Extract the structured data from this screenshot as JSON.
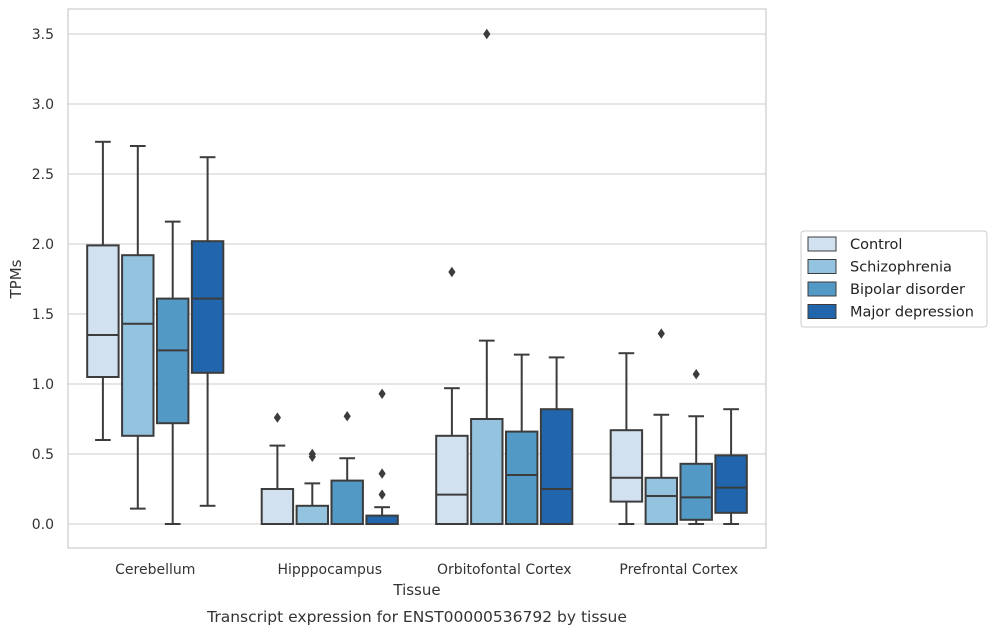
{
  "caption": "Transcript expression for ENST00000536792 by tissue",
  "chart_data": {
    "type": "box",
    "xlabel": "Tissue",
    "ylabel": "TPMs",
    "ylim": [
      -0.17,
      3.67
    ],
    "yticks": [
      "0.0",
      "0.5",
      "1.0",
      "1.5",
      "2.0",
      "2.5",
      "3.0",
      "3.5"
    ],
    "grid": true,
    "legend_position": "right",
    "categories": [
      "Cerebellum",
      "Hipppocampus",
      "Orbitofontal Cortex",
      "Prefrontal Cortex"
    ],
    "series": [
      {
        "name": "Control",
        "color": "#d1e1f0",
        "boxes": [
          {
            "whislo": 0.6,
            "q1": 1.05,
            "med": 1.35,
            "q3": 1.99,
            "whishi": 2.73,
            "fliers": []
          },
          {
            "whislo": 0.0,
            "q1": 0.0,
            "med": 0.0,
            "q3": 0.25,
            "whishi": 0.56,
            "fliers": [
              0.76
            ]
          },
          {
            "whislo": 0.0,
            "q1": 0.0,
            "med": 0.21,
            "q3": 0.63,
            "whishi": 0.97,
            "fliers": [
              1.8
            ]
          },
          {
            "whislo": 0.0,
            "q1": 0.16,
            "med": 0.33,
            "q3": 0.67,
            "whishi": 1.22,
            "fliers": []
          }
        ]
      },
      {
        "name": "Schizophrenia",
        "color": "#93c3df",
        "boxes": [
          {
            "whislo": 0.11,
            "q1": 0.63,
            "med": 1.43,
            "q3": 1.92,
            "whishi": 2.7,
            "fliers": []
          },
          {
            "whislo": 0.0,
            "q1": 0.0,
            "med": 0.0,
            "q3": 0.13,
            "whishi": 0.29,
            "fliers": [
              0.48,
              0.5
            ]
          },
          {
            "whislo": 0.0,
            "q1": 0.0,
            "med": 0.0,
            "q3": 0.75,
            "whishi": 1.31,
            "fliers": [
              3.5
            ]
          },
          {
            "whislo": 0.0,
            "q1": 0.0,
            "med": 0.2,
            "q3": 0.33,
            "whishi": 0.78,
            "fliers": [
              1.36
            ]
          }
        ]
      },
      {
        "name": "Bipolar disorder",
        "color": "#5399c6",
        "boxes": [
          {
            "whislo": 0.0,
            "q1": 0.72,
            "med": 1.24,
            "q3": 1.61,
            "whishi": 2.16,
            "fliers": []
          },
          {
            "whislo": 0.0,
            "q1": 0.0,
            "med": 0.0,
            "q3": 0.31,
            "whishi": 0.47,
            "fliers": [
              0.77
            ]
          },
          {
            "whislo": 0.0,
            "q1": 0.0,
            "med": 0.35,
            "q3": 0.66,
            "whishi": 1.21,
            "fliers": []
          },
          {
            "whislo": 0.0,
            "q1": 0.03,
            "med": 0.19,
            "q3": 0.43,
            "whishi": 0.77,
            "fliers": [
              1.07
            ]
          }
        ]
      },
      {
        "name": "Major depression",
        "color": "#2166ac",
        "boxes": [
          {
            "whislo": 0.13,
            "q1": 1.08,
            "med": 1.61,
            "q3": 2.02,
            "whishi": 2.62,
            "fliers": []
          },
          {
            "whislo": 0.0,
            "q1": 0.0,
            "med": 0.0,
            "q3": 0.06,
            "whishi": 0.12,
            "fliers": [
              0.21,
              0.36,
              0.93
            ]
          },
          {
            "whislo": 0.0,
            "q1": 0.0,
            "med": 0.25,
            "q3": 0.82,
            "whishi": 1.19,
            "fliers": []
          },
          {
            "whislo": 0.0,
            "q1": 0.08,
            "med": 0.26,
            "q3": 0.49,
            "whishi": 0.82,
            "fliers": []
          }
        ]
      }
    ]
  }
}
